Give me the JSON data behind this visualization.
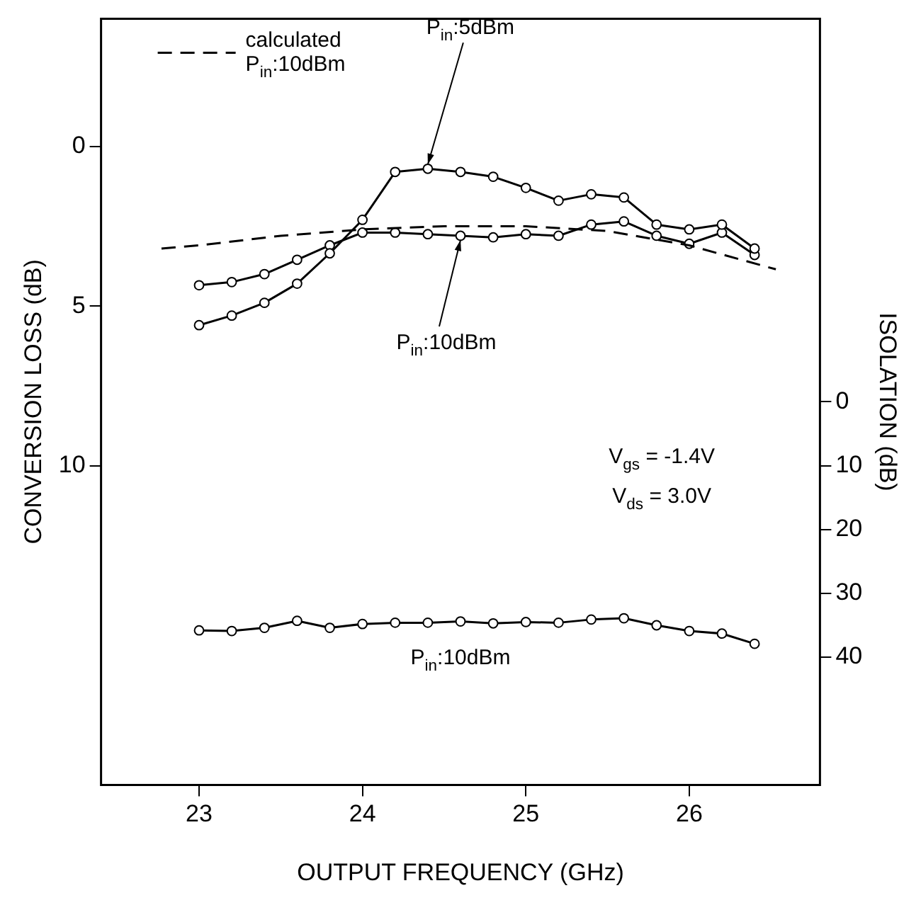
{
  "chart_data": {
    "type": "line",
    "xlabel": "OUTPUT FREQUENCY (GHz)",
    "ylabel": "CONVERSION LOSS (dB)",
    "y2label": "ISOLATION (dB)",
    "xlim": [
      22.4,
      26.8
    ],
    "xticks": [
      23,
      24,
      25,
      26
    ],
    "ylim": [
      20,
      -4
    ],
    "yticks": [
      0,
      5,
      10
    ],
    "y2lim": [
      60,
      -60
    ],
    "y2ticks": [
      0,
      10,
      20,
      30,
      40
    ],
    "grid": false,
    "legend": "top left",
    "marker": "circle",
    "line_style": "solid",
    "annotations": [
      "V$_{gs}$ = -1.4V",
      "V$_{ds}$ = 3.0V"
    ],
    "series": [
      {
        "name": "calculated P$_{in}$:10dBm",
        "color": "#000000",
        "line_style": "dashed",
        "marker": "none",
        "x": [
          22.77,
          23,
          23.5,
          24,
          24.5,
          25,
          25.5,
          26,
          26.53
        ],
        "values": [
          3.2,
          3.1,
          2.8,
          2.6,
          2.5,
          2.5,
          2.65,
          3.1,
          3.85
        ]
      },
      {
        "name": "P$_{in}$:5dBm",
        "color": "#000000",
        "x": [
          23,
          23.2,
          23.4,
          23.6,
          23.8,
          24,
          24.2,
          24.4,
          24.6,
          24.8,
          25,
          25.2,
          25.4,
          25.6,
          25.8,
          26,
          26.2,
          26.4
        ],
        "values": [
          5.6,
          5.3,
          4.9,
          4.3,
          3.35,
          2.3,
          0.8,
          0.7,
          0.8,
          0.95,
          1.3,
          1.7,
          1.5,
          1.6,
          2.45,
          2.6,
          2.45,
          3.2
        ]
      },
      {
        "name": "P$_{in}$:10dBm",
        "color": "#000000",
        "x": [
          23,
          23.2,
          23.4,
          23.6,
          23.8,
          24,
          24.2,
          24.4,
          24.6,
          24.8,
          25,
          25.2,
          25.4,
          25.6,
          25.8,
          26,
          26.2,
          26.4
        ],
        "values": [
          4.35,
          4.25,
          4.0,
          3.55,
          3.1,
          2.7,
          2.7,
          2.75,
          2.8,
          2.85,
          2.75,
          2.8,
          2.45,
          2.35,
          2.8,
          3.05,
          2.7,
          3.4
        ]
      },
      {
        "name": "P$_{in}$:10dBm",
        "color": "#000000",
        "axis": "y2",
        "x": [
          23,
          23.2,
          23.4,
          23.6,
          23.8,
          24,
          24.2,
          24.4,
          24.6,
          24.8,
          25,
          25.2,
          25.4,
          25.6,
          25.8,
          26,
          26.2,
          26.4
        ],
        "values": [
          35.8,
          35.9,
          35.4,
          34.3,
          35.4,
          34.8,
          34.6,
          34.6,
          34.4,
          34.7,
          34.5,
          34.6,
          34.1,
          33.9,
          35.0,
          35.9,
          36.3,
          37.9
        ]
      }
    ]
  }
}
